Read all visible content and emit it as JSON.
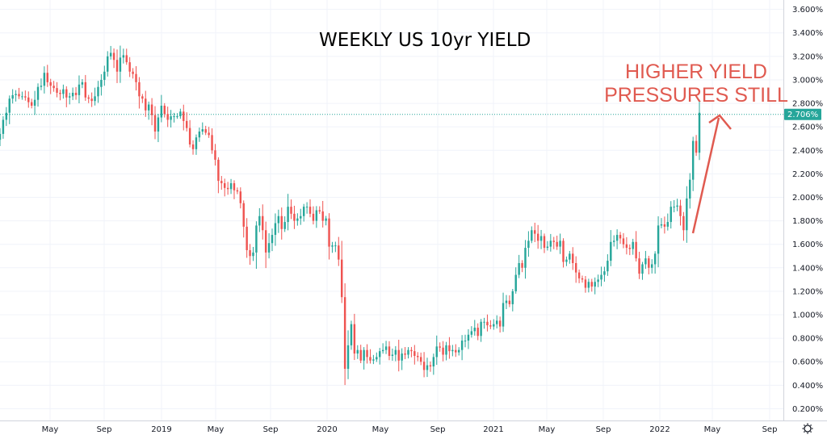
{
  "chart_data": {
    "type": "candlestick",
    "title": "WEEKLY US 10yr YIELD",
    "annotation": [
      "HIGHER YIELD",
      "PRESSURES STILL"
    ],
    "ylim": [
      0.1,
      3.68
    ],
    "y_ticks": [
      "0.200%",
      "0.400%",
      "0.600%",
      "0.800%",
      "1.000%",
      "1.200%",
      "1.400%",
      "1.600%",
      "1.800%",
      "2.000%",
      "2.200%",
      "2.400%",
      "2.600%",
      "2.800%",
      "3.000%",
      "3.200%",
      "3.400%",
      "3.600%"
    ],
    "x_ticks": [
      "May",
      "Sep",
      "2019",
      "May",
      "Sep",
      "2020",
      "May",
      "Sep",
      "2021",
      "May",
      "Sep",
      "2022",
      "May",
      "Sep"
    ],
    "last_value": 2.706,
    "last_label": "2.706%",
    "colors": {
      "up": "#26a69a",
      "down": "#ef5350",
      "annotation": "#e05a50",
      "price_line": "#26a69a"
    },
    "x_start": "2018-01 (approx.)",
    "x_end": "2022-10 (approx.)",
    "series": [
      {
        "values": [
          2.54,
          2.66,
          2.72,
          2.84,
          2.87,
          2.88,
          2.86,
          2.86,
          2.85,
          2.81,
          2.78,
          2.83,
          2.94,
          2.95,
          3.06,
          2.98,
          2.95,
          2.93,
          2.89,
          2.88,
          2.92,
          2.85,
          2.86,
          2.89,
          2.87,
          2.96,
          2.98,
          2.85,
          2.84,
          2.82,
          2.86,
          2.94,
          3.0,
          3.07,
          3.2,
          3.23,
          3.17,
          3.07,
          3.19,
          3.21,
          3.15,
          3.07,
          3.05,
          2.98,
          2.86,
          2.84,
          2.74,
          2.79,
          2.7,
          2.56,
          2.68,
          2.78,
          2.71,
          2.66,
          2.69,
          2.69,
          2.69,
          2.73,
          2.65,
          2.59,
          2.45,
          2.41,
          2.51,
          2.56,
          2.58,
          2.55,
          2.53,
          2.4,
          2.32,
          2.14,
          2.12,
          2.08,
          2.07,
          2.12,
          2.06,
          2.05,
          1.95,
          1.75,
          1.55,
          1.5,
          1.53,
          1.76,
          1.84,
          1.72,
          1.53,
          1.61,
          1.68,
          1.78,
          1.84,
          1.73,
          1.79,
          1.92,
          1.86,
          1.8,
          1.82,
          1.84,
          1.92,
          1.92,
          1.86,
          1.8,
          1.89,
          1.88,
          1.8,
          1.82,
          1.58,
          1.59,
          1.59,
          1.47,
          1.15,
          0.54,
          0.74,
          0.92,
          0.67,
          0.7,
          0.61,
          0.7,
          0.64,
          0.61,
          0.62,
          0.64,
          0.69,
          0.7,
          0.73,
          0.65,
          0.66,
          0.7,
          0.61,
          0.67,
          0.66,
          0.7,
          0.69,
          0.65,
          0.64,
          0.6,
          0.53,
          0.57,
          0.56,
          0.64,
          0.73,
          0.72,
          0.66,
          0.74,
          0.69,
          0.7,
          0.68,
          0.7,
          0.78,
          0.78,
          0.83,
          0.86,
          0.89,
          0.82,
          0.94,
          0.94,
          0.91,
          0.9,
          0.92,
          0.95,
          0.9,
          1.1,
          1.12,
          1.09,
          1.2,
          1.34,
          1.44,
          1.4,
          1.57,
          1.63,
          1.72,
          1.69,
          1.63,
          1.67,
          1.57,
          1.58,
          1.63,
          1.62,
          1.58,
          1.63,
          1.45,
          1.47,
          1.52,
          1.44,
          1.36,
          1.31,
          1.3,
          1.23,
          1.28,
          1.24,
          1.28,
          1.3,
          1.34,
          1.37,
          1.46,
          1.62,
          1.63,
          1.68,
          1.65,
          1.6,
          1.57,
          1.56,
          1.62,
          1.48,
          1.35,
          1.43,
          1.48,
          1.4,
          1.43,
          1.52,
          1.76,
          1.77,
          1.75,
          1.79,
          1.92,
          1.92,
          1.93,
          1.84,
          1.72,
          1.99,
          2.15,
          2.48,
          2.38,
          2.72
        ]
      }
    ]
  }
}
